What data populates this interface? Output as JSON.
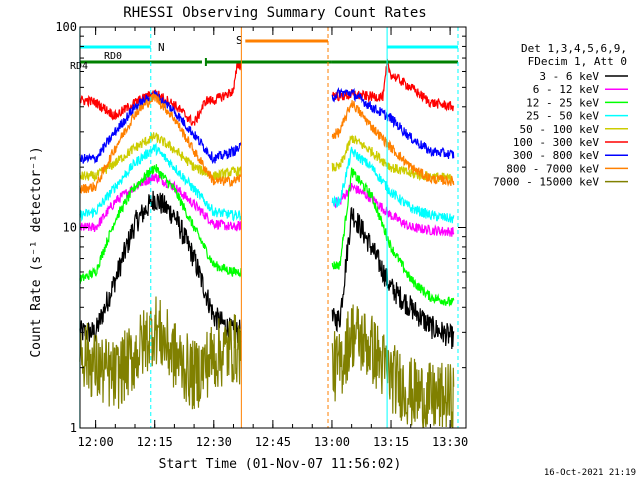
{
  "chart_data": {
    "type": "line",
    "title": "RHESSI Observing Summary Count Rates",
    "xlabel": "Start Time (01-Nov-07 11:56:02)",
    "ylabel": "Count Rate (s⁻¹ detector⁻¹)",
    "y_scale": "log",
    "ylim": [
      1,
      100
    ],
    "xlim_minutes_after_start": [
      0,
      98
    ],
    "y_ticks": [
      {
        "value": 1,
        "label": "1"
      },
      {
        "value": 10,
        "label": "10"
      },
      {
        "value": 100,
        "label": "100"
      }
    ],
    "x_ticks": [
      {
        "value": "12:00",
        "label": "12:00"
      },
      {
        "value": "12:15",
        "label": "12:15"
      },
      {
        "value": "12:30",
        "label": "12:30"
      },
      {
        "value": "12:45",
        "label": "12:45"
      },
      {
        "value": "13:00",
        "label": "13:00"
      },
      {
        "value": "13:15",
        "label": "13:15"
      },
      {
        "value": "13:30",
        "label": "13:30"
      }
    ],
    "legend": {
      "placement": "right",
      "header": [
        "Det 1,3,4,5,6,9,",
        "FDecim 1, Att 0"
      ],
      "entries": [
        {
          "label": "3 - 6 keV",
          "color": "#000000"
        },
        {
          "label": "6 - 12 keV",
          "color": "#ff00ff"
        },
        {
          "label": "12 - 25 keV",
          "color": "#00ff00"
        },
        {
          "label": "25 - 50 keV",
          "color": "#00ffff"
        },
        {
          "label": "50 - 100 keV",
          "color": "#cccc00"
        },
        {
          "label": "100 - 300 keV",
          "color": "#ff0000"
        },
        {
          "label": "300 - 800 keV",
          "color": "#0000ff"
        },
        {
          "label": "800 - 7000 keV",
          "color": "#ff8000"
        },
        {
          "label": "7000 - 15000 keV",
          "color": "#808000"
        }
      ]
    },
    "flags": {
      "N": {
        "label": "N",
        "color": "#00ffff",
        "intervals_time": [
          [
            "11:56",
            "12:14"
          ],
          [
            "13:14",
            "13:32"
          ]
        ]
      },
      "RD0": {
        "label": "RD0",
        "color": "#008000"
      },
      "RD4": {
        "label": "RD4",
        "color": "#008000",
        "intervals_time": [
          [
            "11:56",
            "12:27"
          ],
          [
            "12:28",
            "13:00"
          ],
          [
            "13:00",
            "13:14"
          ],
          [
            "13:14",
            "13:32"
          ]
        ]
      },
      "S": {
        "label": "S",
        "color": "#ff8000",
        "intervals_time": [
          [
            "12:38",
            "12:59"
          ]
        ]
      }
    },
    "gaps_time": [
      [
        "12:37",
        "13:00"
      ]
    ],
    "series": [
      {
        "name": "3 - 6 keV",
        "color": "#000000",
        "time": [
          "11:56",
          "12:00",
          "12:05",
          "12:10",
          "12:15",
          "12:20",
          "12:25",
          "12:30",
          "12:35",
          "13:02",
          "13:05",
          "13:10",
          "13:15",
          "13:20",
          "13:25",
          "13:31"
        ],
        "values": [
          3.0,
          3.0,
          5.5,
          10.5,
          14.0,
          11.5,
          7.0,
          3.6,
          3.0,
          3.5,
          12.0,
          8.0,
          5.0,
          4.0,
          3.2,
          2.8
        ]
      },
      {
        "name": "6 - 12 keV",
        "color": "#ff00ff",
        "time": [
          "11:56",
          "12:00",
          "12:05",
          "12:10",
          "12:15",
          "12:20",
          "12:25",
          "12:30",
          "12:35",
          "13:02",
          "13:05",
          "13:10",
          "13:15",
          "13:20",
          "13:25",
          "13:31"
        ],
        "values": [
          10.0,
          10.0,
          13.5,
          16.0,
          18.0,
          16.0,
          13.0,
          10.5,
          10.0,
          13.5,
          16.0,
          14.0,
          11.5,
          10.0,
          9.7,
          9.5
        ]
      },
      {
        "name": "12 - 25 keV",
        "color": "#00ff00",
        "time": [
          "11:56",
          "12:00",
          "12:05",
          "12:10",
          "12:15",
          "12:20",
          "12:25",
          "12:30",
          "12:35",
          "13:02",
          "13:05",
          "13:10",
          "13:15",
          "13:20",
          "13:25",
          "13:31"
        ],
        "values": [
          5.5,
          6.0,
          11.0,
          16.0,
          20.0,
          15.5,
          10.0,
          6.5,
          6.0,
          6.5,
          19.0,
          14.5,
          8.0,
          5.5,
          4.5,
          4.2
        ]
      },
      {
        "name": "25 - 50 keV",
        "color": "#00ffff",
        "time": [
          "11:56",
          "12:00",
          "12:05",
          "12:10",
          "12:15",
          "12:20",
          "12:25",
          "12:30",
          "12:35",
          "13:02",
          "13:05",
          "13:10",
          "13:15",
          "13:20",
          "13:25",
          "13:31"
        ],
        "values": [
          11.5,
          12.0,
          16.0,
          21.0,
          25.0,
          20.0,
          15.5,
          12.0,
          11.5,
          13.5,
          24.0,
          20.0,
          15.0,
          12.5,
          11.5,
          11.0
        ]
      },
      {
        "name": "50 - 100 keV",
        "color": "#cccc00",
        "time": [
          "11:56",
          "12:00",
          "12:05",
          "12:10",
          "12:15",
          "12:20",
          "12:25",
          "12:30",
          "12:35",
          "13:02",
          "13:05",
          "13:10",
          "13:15",
          "13:20",
          "13:25",
          "13:31"
        ],
        "values": [
          18.0,
          18.0,
          21.0,
          25.0,
          28.5,
          24.5,
          20.0,
          18.0,
          19.0,
          20.0,
          28.0,
          24.0,
          20.0,
          18.5,
          18.0,
          17.5
        ]
      },
      {
        "name": "100 - 300 keV",
        "color": "#ff0000",
        "time": [
          "11:56",
          "11:58",
          "12:00",
          "12:05",
          "12:10",
          "12:15",
          "12:20",
          "12:25",
          "12:28",
          "12:30",
          "12:35",
          "12:36",
          "13:02",
          "13:05",
          "13:10",
          "13:13",
          "13:14",
          "13:15",
          "13:20",
          "13:25",
          "13:31"
        ],
        "values": [
          43.0,
          43.0,
          42.0,
          36.0,
          42.0,
          47.0,
          41.0,
          33.0,
          43.0,
          43.0,
          48.0,
          65.0,
          45.0,
          46.0,
          45.0,
          45.0,
          65.0,
          58.0,
          50.0,
          42.0,
          40.0
        ]
      },
      {
        "name": "300 - 800 keV",
        "color": "#0000ff",
        "time": [
          "11:56",
          "12:00",
          "12:05",
          "12:10",
          "12:15",
          "12:20",
          "12:25",
          "12:30",
          "12:35",
          "13:02",
          "13:05",
          "13:10",
          "13:15",
          "13:20",
          "13:25",
          "13:31"
        ],
        "values": [
          22.0,
          22.0,
          30.0,
          40.0,
          46.0,
          38.0,
          29.0,
          22.0,
          24.0,
          47.0,
          47.0,
          40.0,
          35.0,
          28.0,
          24.0,
          23.0
        ]
      },
      {
        "name": "800 - 7000 keV",
        "color": "#ff8000",
        "time": [
          "11:56",
          "12:00",
          "12:05",
          "12:10",
          "12:15",
          "12:20",
          "12:25",
          "12:30",
          "12:35",
          "13:02",
          "13:05",
          "13:10",
          "13:15",
          "13:20",
          "13:25",
          "13:31"
        ],
        "values": [
          15.5,
          16.0,
          25.0,
          37.0,
          45.0,
          35.0,
          24.0,
          17.0,
          17.0,
          30.0,
          42.0,
          32.0,
          25.0,
          20.0,
          17.5,
          17.0
        ]
      },
      {
        "name": "7000 - 15000 keV",
        "color": "#808000",
        "time": [
          "11:56",
          "12:00",
          "12:05",
          "12:10",
          "12:15",
          "12:20",
          "12:25",
          "12:30",
          "12:35",
          "13:02",
          "13:05",
          "13:10",
          "13:15",
          "13:20",
          "13:25",
          "13:31"
        ],
        "values": [
          2.5,
          2.0,
          1.8,
          2.3,
          3.2,
          2.3,
          1.8,
          2.3,
          2.5,
          2.0,
          3.0,
          2.5,
          1.8,
          1.5,
          1.4,
          1.4
        ]
      }
    ]
  },
  "footer": {
    "timestamp": "16-Oct-2021 21:19"
  }
}
